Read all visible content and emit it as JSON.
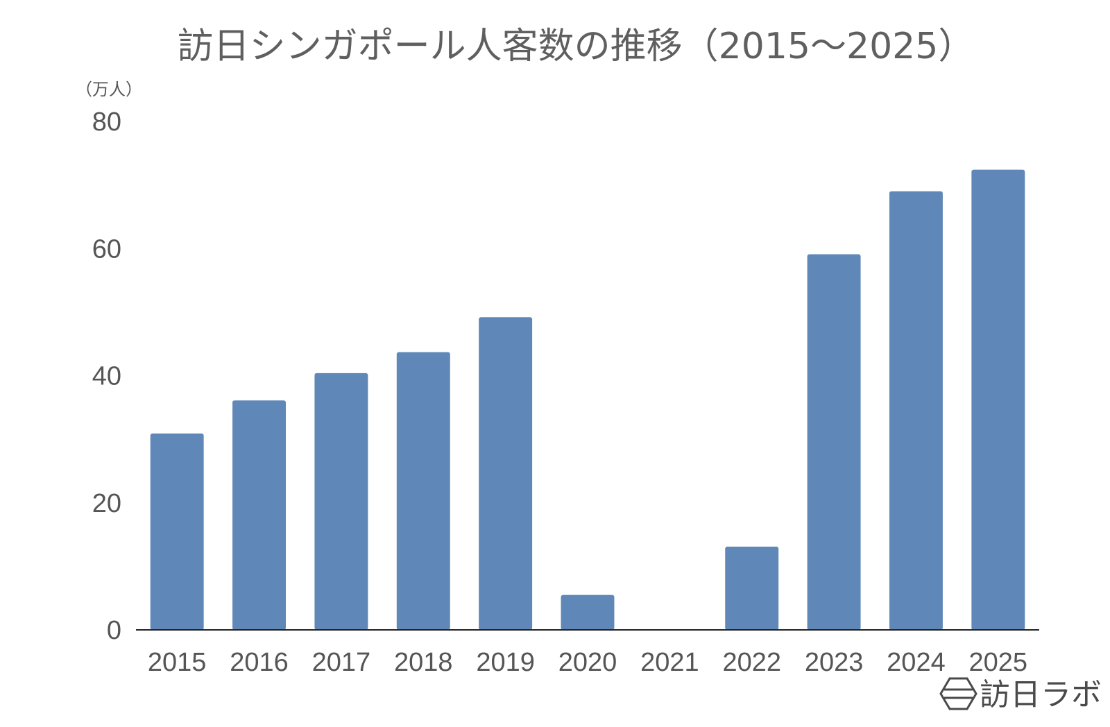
{
  "brand": {
    "name": "訪日ラボ",
    "logo_icon": "hexagon-logo-icon"
  },
  "chart_data": {
    "type": "bar",
    "title": "訪日シンガポール人客数の推移（2015〜2025）",
    "unit_label": "（万人）",
    "xlabel": "",
    "ylabel": "",
    "categories": [
      "2015",
      "2016",
      "2017",
      "2018",
      "2019",
      "2020",
      "2021",
      "2022",
      "2023",
      "2024",
      "2025"
    ],
    "values": [
      30.9,
      36.1,
      40.4,
      43.7,
      49.2,
      5.5,
      0.03,
      13.1,
      59.1,
      69.0,
      72.4
    ],
    "ylim": [
      0,
      80
    ],
    "yticks": [
      "0",
      "20",
      "40",
      "60",
      "80"
    ],
    "grid": false,
    "legend": "none",
    "colors": {
      "bar": "#5f87b7",
      "axis": "#222222"
    }
  }
}
